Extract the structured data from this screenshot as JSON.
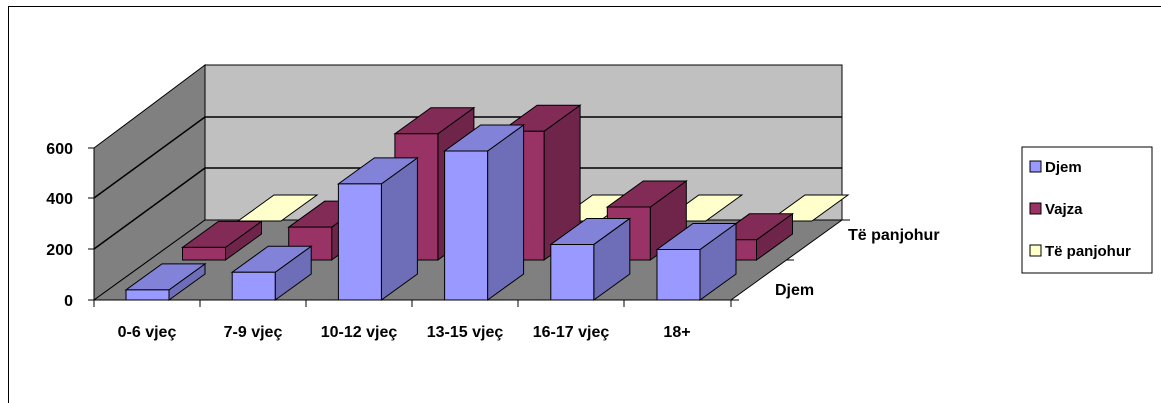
{
  "chart_data": {
    "type": "bar",
    "subtype": "3d-clustered-depth",
    "title": "",
    "xlabel": "",
    "ylabel": "",
    "categories": [
      "0-6 vjeç",
      "7-9 vjeç",
      "10-12 vjeç",
      "13-15 vjeç",
      "16-17 vjeç",
      "18+"
    ],
    "depth_labels": [
      "Djem",
      "Të panjohur"
    ],
    "series": [
      {
        "name": "Djem",
        "color": "#9999FF",
        "values": [
          40,
          110,
          460,
          590,
          220,
          200
        ]
      },
      {
        "name": "Vajza",
        "color": "#993366",
        "values": [
          50,
          130,
          500,
          510,
          210,
          80
        ]
      },
      {
        "name": "Të panjohur",
        "color": "#FFFFCC",
        "values": [
          0,
          0,
          0,
          0,
          0,
          0
        ]
      }
    ],
    "y_ticks": [
      "0",
      "200",
      "400",
      "600"
    ],
    "ylim": [
      0,
      800
    ],
    "grid": true,
    "legend_position": "right",
    "colors": {
      "back_wall": "#C0C0C0",
      "side_wall": "#808080",
      "floor": "#808080"
    }
  }
}
